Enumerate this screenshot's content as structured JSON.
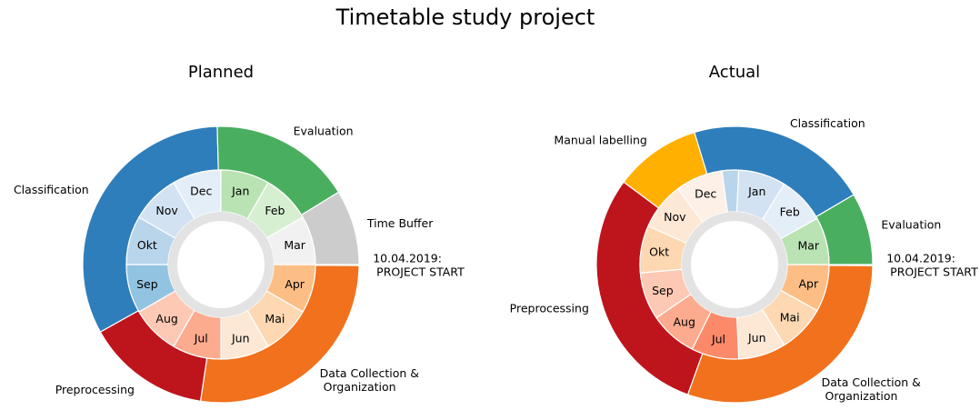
{
  "figure": {
    "title": "Timetable study project"
  },
  "chart_data": [
    {
      "type": "pie",
      "subtype": "nested-donut",
      "title": "Planned",
      "direction": "clockwise",
      "outer": [
        {
          "label": "10.04.2019:\n PROJECT START",
          "value": 0.4,
          "color": "#ffffff",
          "explode": true
        },
        {
          "label": "Data Collection &\n Organization",
          "value": 90,
          "color": "#f2711c"
        },
        {
          "label": "Preprocessing",
          "value": 48,
          "color": "#be141c"
        },
        {
          "label": "Classification",
          "value": 108,
          "color": "#2e7ebb"
        },
        {
          "label": "Evaluation",
          "value": 55,
          "color": "#4aae5f"
        },
        {
          "label": "Time Buffer",
          "value": 29,
          "color": "#cccccc"
        }
      ],
      "inner": [
        {
          "label": "Apr",
          "value": 1,
          "color": "#fdbe86"
        },
        {
          "label": "Mai",
          "value": 1,
          "color": "#fdd8b2"
        },
        {
          "label": "Jun",
          "value": 1,
          "color": "#fde8d6"
        },
        {
          "label": "Jul",
          "value": 1,
          "color": "#fcab8f"
        },
        {
          "label": "Aug",
          "value": 1,
          "color": "#fdc9b4"
        },
        {
          "label": "Sep",
          "value": 1,
          "color": "#92c3e1"
        },
        {
          "label": "Okt",
          "value": 1,
          "color": "#b8d5eb"
        },
        {
          "label": "Nov",
          "value": 1,
          "color": "#d2e2f2"
        },
        {
          "label": "Dec",
          "value": 1,
          "color": "#e4eef8"
        },
        {
          "label": "Jan",
          "value": 1,
          "color": "#bae3b4"
        },
        {
          "label": "Feb",
          "value": 1,
          "color": "#d6efd0"
        },
        {
          "label": "Mar",
          "value": 1,
          "color": "#f1f1f1"
        }
      ]
    },
    {
      "type": "pie",
      "subtype": "nested-donut",
      "title": "Actual",
      "direction": "clockwise",
      "outer": [
        {
          "label": "10.04.2019:\n PROJECT START",
          "value": 0.4,
          "color": "#ffffff",
          "explode": true
        },
        {
          "label": "Data Collection &\n Organization",
          "value": 90,
          "color": "#f2711c"
        },
        {
          "label": "Preprocessing",
          "value": 88,
          "color": "#be141c"
        },
        {
          "label": "Manual labelling",
          "value": 30,
          "color": "#ffb000"
        },
        {
          "label": "Classification",
          "value": 63,
          "color": "#2e7ebb"
        },
        {
          "label": "Evaluation",
          "value": 25,
          "color": "#4aae5f"
        }
      ],
      "inner": [
        {
          "label": "Apr",
          "value": 1,
          "color": "#fdbe86"
        },
        {
          "label": "Mai",
          "value": 1,
          "color": "#fdd8b2"
        },
        {
          "label": "Jun",
          "value": 1,
          "color": "#fde8d6"
        },
        {
          "label": "Jul",
          "value": 1,
          "color": "#fc8a6a"
        },
        {
          "label": "Aug",
          "value": 1,
          "color": "#fcab8f"
        },
        {
          "label": "Sep",
          "value": 1,
          "color": "#fdc9b4"
        },
        {
          "label": "Okt",
          "value": 1,
          "color": "#fdd8b2"
        },
        {
          "label": "Nov",
          "value": 1,
          "color": "#fde8d6"
        },
        {
          "label": "Dec",
          "value": 1,
          "color": "#fdf0e6"
        },
        {
          "label": "",
          "value": 0.35,
          "color": "#b8d5eb"
        },
        {
          "label": "Jan",
          "value": 1,
          "color": "#d2e2f2"
        },
        {
          "label": "Feb",
          "value": 1,
          "color": "#e4eef8"
        },
        {
          "label": "Mar",
          "value": 1,
          "color": "#bae3b4"
        }
      ]
    }
  ]
}
